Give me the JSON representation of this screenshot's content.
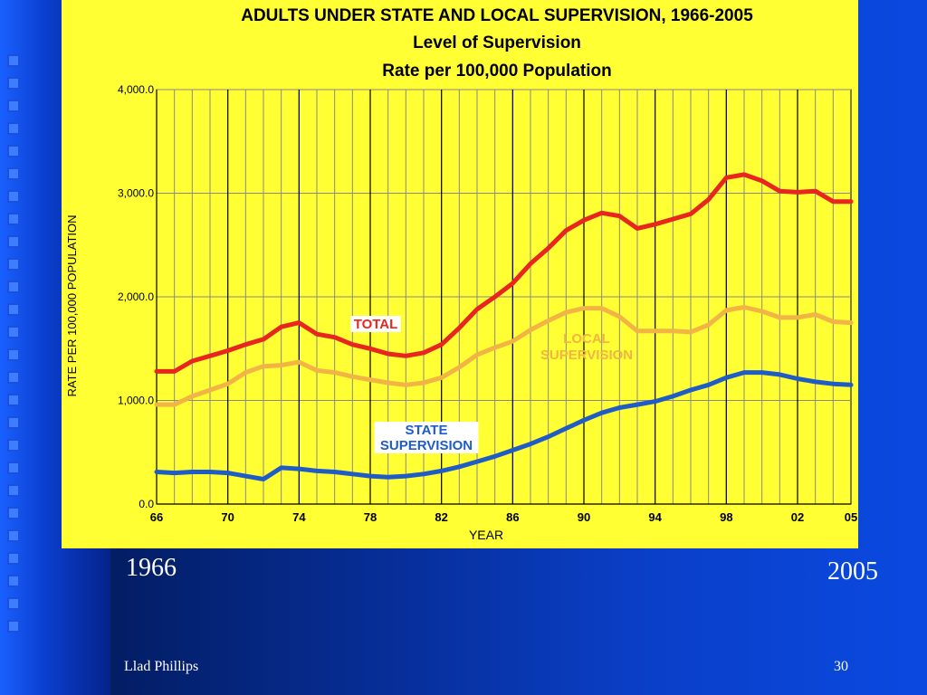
{
  "slide": {
    "start_year": "1966",
    "end_year": "2005",
    "author": "Llad Phillips",
    "page_number": "30"
  },
  "colors": {
    "background": "#0a3fc8",
    "chart_background": "#ffff33",
    "total": "#e8251f",
    "local": "#f2b445",
    "state": "#1f5cc6"
  },
  "chart_data": {
    "type": "line",
    "title": "ADULTS UNDER STATE AND LOCAL SUPERVISION, 1966-2005",
    "subtitle": "Level of Supervision",
    "subtitle2": "Rate per 100,000 Population",
    "xlabel": "YEAR",
    "ylabel": "RATE PER 100,000 POPULATION",
    "xlim": [
      1966,
      2005
    ],
    "ylim": [
      0,
      4000
    ],
    "x_ticks": [
      {
        "value": 1966,
        "label": "66"
      },
      {
        "value": 1970,
        "label": "70"
      },
      {
        "value": 1974,
        "label": "74"
      },
      {
        "value": 1978,
        "label": "78"
      },
      {
        "value": 1982,
        "label": "82"
      },
      {
        "value": 1986,
        "label": "86"
      },
      {
        "value": 1990,
        "label": "90"
      },
      {
        "value": 1994,
        "label": "94"
      },
      {
        "value": 1998,
        "label": "98"
      },
      {
        "value": 2002,
        "label": "02"
      },
      {
        "value": 2005,
        "label": "05"
      }
    ],
    "y_ticks": [
      {
        "value": 0,
        "label": "0.0"
      },
      {
        "value": 1000,
        "label": "1,000.0"
      },
      {
        "value": 2000,
        "label": "2,000.0"
      },
      {
        "value": 3000,
        "label": "3,000.0"
      },
      {
        "value": 4000,
        "label": "4,000.0"
      }
    ],
    "grid": true,
    "x": [
      1966,
      1967,
      1968,
      1969,
      1970,
      1971,
      1972,
      1973,
      1974,
      1975,
      1976,
      1977,
      1978,
      1979,
      1980,
      1981,
      1982,
      1983,
      1984,
      1985,
      1986,
      1987,
      1988,
      1989,
      1990,
      1991,
      1992,
      1993,
      1994,
      1995,
      1996,
      1997,
      1998,
      1999,
      2000,
      2001,
      2002,
      2003,
      2004,
      2005
    ],
    "series": [
      {
        "name": "TOTAL",
        "values": [
          1280,
          1280,
          1380,
          1430,
          1480,
          1540,
          1590,
          1710,
          1750,
          1640,
          1610,
          1540,
          1500,
          1450,
          1430,
          1460,
          1540,
          1700,
          1880,
          2000,
          2130,
          2320,
          2470,
          2640,
          2740,
          2810,
          2780,
          2660,
          2700,
          2750,
          2800,
          2940,
          3150,
          3180,
          3120,
          3020,
          3010,
          3020,
          2920,
          2920
        ]
      },
      {
        "name": "LOCAL SUPERVISION",
        "values": [
          960,
          960,
          1040,
          1100,
          1160,
          1270,
          1330,
          1340,
          1370,
          1290,
          1270,
          1230,
          1200,
          1170,
          1150,
          1170,
          1220,
          1320,
          1440,
          1510,
          1570,
          1680,
          1770,
          1850,
          1890,
          1890,
          1810,
          1670,
          1670,
          1670,
          1660,
          1730,
          1870,
          1900,
          1860,
          1800,
          1800,
          1830,
          1760,
          1750
        ]
      },
      {
        "name": "STATE SUPERVISION",
        "values": [
          310,
          300,
          310,
          310,
          300,
          270,
          240,
          350,
          340,
          320,
          310,
          290,
          270,
          260,
          270,
          290,
          320,
          360,
          410,
          460,
          520,
          580,
          650,
          730,
          810,
          880,
          930,
          960,
          990,
          1040,
          1100,
          1150,
          1220,
          1270,
          1270,
          1250,
          1210,
          1180,
          1160,
          1150
        ]
      }
    ]
  }
}
